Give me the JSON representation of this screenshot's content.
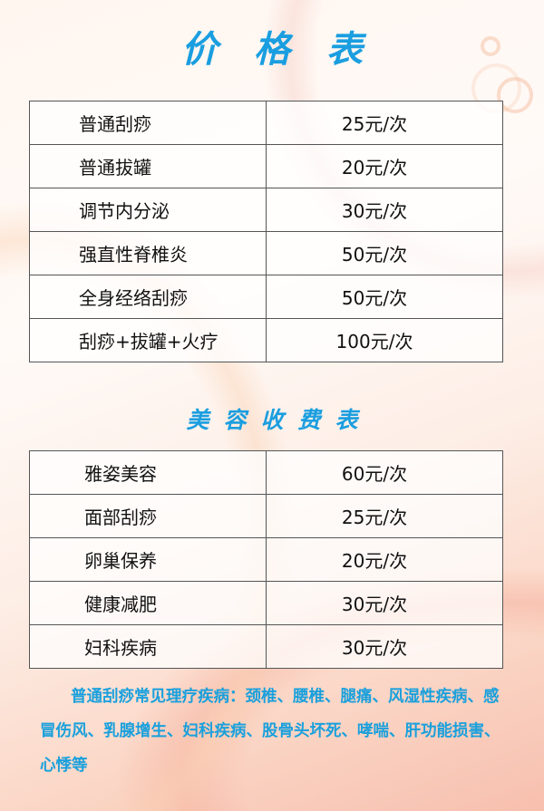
{
  "title": "价格表",
  "price_table": [
    {
      "name": "普通刮痧",
      "price": "25元/次"
    },
    {
      "name": "普通拔罐",
      "price": "20元/次"
    },
    {
      "name": "调节内分泌",
      "price": "30元/次"
    },
    {
      "name": "强直性脊椎炎",
      "price": "50元/次"
    },
    {
      "name": "全身经络刮痧",
      "price": "50元/次"
    },
    {
      "name": "刮痧+拔罐+火疗",
      "price": "100元/次"
    }
  ],
  "subtitle": "美容收费表",
  "beauty_table": [
    {
      "name": "雅姿美容",
      "price": "60元/次"
    },
    {
      "name": "面部刮痧",
      "price": "25元/次"
    },
    {
      "name": "卵巢保养",
      "price": "20元/次"
    },
    {
      "name": "健康减肥",
      "price": "30元/次"
    },
    {
      "name": "妇科疾病",
      "price": "30元/次"
    }
  ],
  "note": "普通刮痧常见理疗疾病：颈椎、腰椎、腿痛、风湿性疾病、感冒伤风、乳腺增生、妇科疾病、股骨头坏死、哮喘、肝功能损害、心悸等",
  "colors": {
    "accent": "#1a9ee0"
  }
}
